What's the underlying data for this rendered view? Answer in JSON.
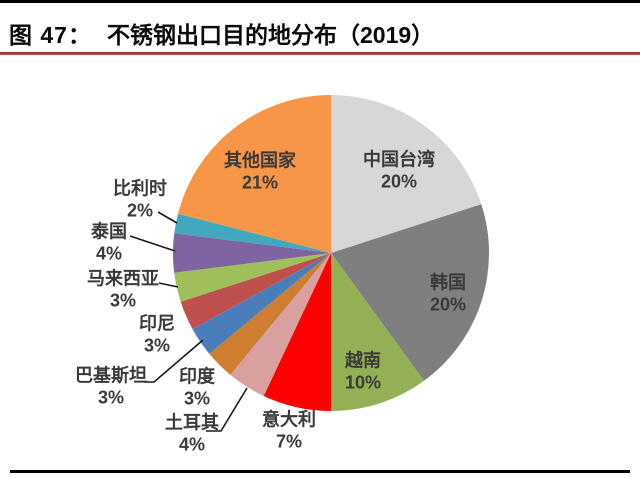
{
  "header": {
    "figure_label": "图 47：",
    "title": "不锈钢出口目的地分布（2019）"
  },
  "chart_data": {
    "type": "pie",
    "title": "不锈钢出口目的地分布（2019）",
    "unit": "%",
    "start_angle_deg": 0,
    "direction": "clockwise",
    "legend": "none",
    "slices": [
      {
        "label": "中国台湾",
        "value_pct": 20,
        "color": "#D7D7D7",
        "label_position": "inside"
      },
      {
        "label": "韩国",
        "value_pct": 20,
        "color": "#7F7F7F",
        "label_position": "inside"
      },
      {
        "label": "越南",
        "value_pct": 10,
        "color": "#94B054",
        "label_position": "inside"
      },
      {
        "label": "意大利",
        "value_pct": 7,
        "color": "#FE0000",
        "label_position": "outside"
      },
      {
        "label": "土耳其",
        "value_pct": 4,
        "color": "#D9A0A0",
        "label_position": "outside"
      },
      {
        "label": "印度",
        "value_pct": 3,
        "color": "#CE7D31",
        "label_position": "outside"
      },
      {
        "label": "巴基斯坦",
        "value_pct": 3,
        "color": "#4A7EBB",
        "label_position": "outside"
      },
      {
        "label": "印尼",
        "value_pct": 3,
        "color": "#C0504D",
        "label_position": "outside"
      },
      {
        "label": "马来西亚",
        "value_pct": 3,
        "color": "#9FBF5B",
        "label_position": "outside"
      },
      {
        "label": "泰国",
        "value_pct": 4,
        "color": "#8064A2",
        "label_position": "outside"
      },
      {
        "label": "比利时",
        "value_pct": 2,
        "color": "#41A8BD",
        "label_position": "outside"
      },
      {
        "label": "其他国家",
        "value_pct": 21,
        "color": "#F79646",
        "label_position": "inside"
      }
    ]
  }
}
